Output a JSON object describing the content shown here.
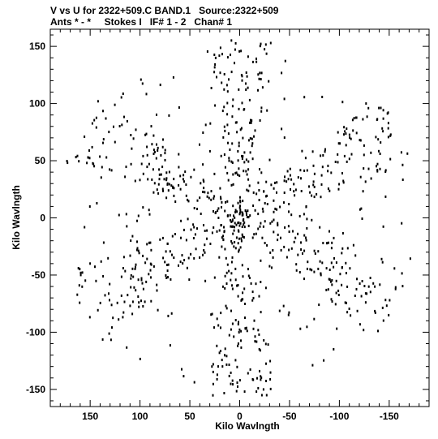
{
  "chart_data": {
    "type": "scatter",
    "title": "V vs U for 2322+509.C BAND.1   Source:2322+509",
    "subtitle": "Ants * - *     Stokes I   IF# 1 - 2   Chan# 1",
    "xlabel": "Kilo Wavlngth",
    "ylabel": "Kilo Wavlngth",
    "xlim": [
      190,
      -190
    ],
    "ylim": [
      -165,
      165
    ],
    "x_reversed": true,
    "grid": false,
    "marker_color": "#000000",
    "x_ticks": [
      150,
      100,
      50,
      0,
      -50,
      -100,
      -150
    ],
    "y_ticks": [
      150,
      100,
      50,
      0,
      -50,
      -100,
      -150
    ],
    "x_tick_labels": [
      "150",
      "100",
      "50",
      "0",
      "-50",
      "-100",
      "-150"
    ],
    "y_tick_labels": [
      "150",
      "100",
      "50",
      "0",
      "-50",
      "-100",
      "-150"
    ],
    "radial_arms_deg": [
      -30,
      30,
      90,
      150,
      210,
      270
    ],
    "points_summary": "Y-shaped VLA uv coverage: dense tracks along six radial arms at 60 degree spacing, u approx -188..188, v approx -158..157"
  }
}
